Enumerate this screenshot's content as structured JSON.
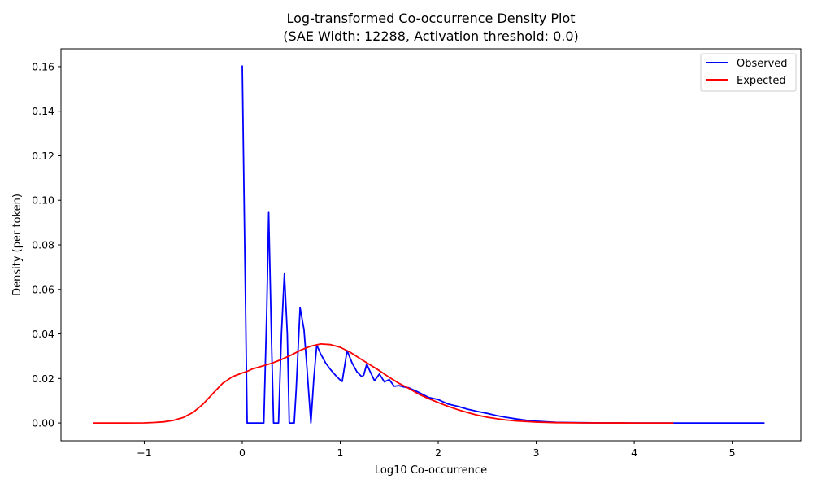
{
  "chart_data": {
    "type": "line",
    "title": "Log-transformed Co-occurrence Density Plot",
    "subtitle": "(SAE Width: 12288, Activation threshold: 0.0)",
    "xlabel": "Log10 Co-occurrence",
    "ylabel": "Density (per token)",
    "xlim": [
      -1.85,
      5.7
    ],
    "ylim": [
      -0.008,
      0.168
    ],
    "xticks": [
      -1,
      0,
      1,
      2,
      3,
      4,
      5
    ],
    "xtick_labels": [
      "−1",
      "0",
      "1",
      "2",
      "3",
      "4",
      "5"
    ],
    "yticks": [
      0.0,
      0.02,
      0.04,
      0.06,
      0.08,
      0.1,
      0.12,
      0.14,
      0.16
    ],
    "ytick_labels": [
      "0.00",
      "0.02",
      "0.04",
      "0.06",
      "0.08",
      "0.10",
      "0.12",
      "0.14",
      "0.16"
    ],
    "grid": false,
    "legend_position": "top-right",
    "series": [
      {
        "name": "Observed",
        "color": "#0000ff",
        "x": [
          0.0,
          0.05,
          0.1,
          0.15,
          0.22,
          0.25,
          0.27,
          0.3,
          0.32,
          0.37,
          0.4,
          0.43,
          0.46,
          0.48,
          0.53,
          0.55,
          0.59,
          0.63,
          0.66,
          0.7,
          0.73,
          0.76,
          0.8,
          0.85,
          0.9,
          0.95,
          1.0,
          1.02,
          1.07,
          1.12,
          1.17,
          1.22,
          1.24,
          1.27,
          1.3,
          1.35,
          1.4,
          1.45,
          1.5,
          1.55,
          1.6,
          1.65,
          1.7,
          1.8,
          1.9,
          2.0,
          2.1,
          2.2,
          2.3,
          2.4,
          2.5,
          2.6,
          2.7,
          2.8,
          2.9,
          3.0,
          3.1,
          3.2,
          3.3,
          3.5,
          3.7,
          4.0,
          4.5,
          5.0,
          5.33
        ],
        "y": [
          0.1605,
          0.0,
          0.0,
          0.0,
          0.0,
          0.05,
          0.0945,
          0.035,
          0.0,
          0.0,
          0.04,
          0.067,
          0.04,
          0.0,
          0.0,
          0.015,
          0.0518,
          0.042,
          0.025,
          0.0,
          0.02,
          0.035,
          0.031,
          0.027,
          0.024,
          0.0215,
          0.0193,
          0.0187,
          0.0325,
          0.027,
          0.023,
          0.0208,
          0.0215,
          0.0265,
          0.0235,
          0.019,
          0.022,
          0.0185,
          0.0195,
          0.0165,
          0.0168,
          0.0162,
          0.0158,
          0.0138,
          0.0115,
          0.0105,
          0.0085,
          0.0075,
          0.0062,
          0.0052,
          0.0043,
          0.0033,
          0.0025,
          0.0018,
          0.0012,
          0.0008,
          0.0005,
          0.0003,
          0.0002,
          0.0001,
          5e-05,
          0.0,
          0.0,
          0.0,
          0.0
        ]
      },
      {
        "name": "Expected",
        "color": "#ff0000",
        "x": [
          -1.52,
          -1.2,
          -1.0,
          -0.9,
          -0.8,
          -0.7,
          -0.6,
          -0.5,
          -0.4,
          -0.3,
          -0.2,
          -0.1,
          0.0,
          0.05,
          0.1,
          0.2,
          0.3,
          0.4,
          0.5,
          0.6,
          0.7,
          0.8,
          0.9,
          1.0,
          1.1,
          1.2,
          1.3,
          1.4,
          1.5,
          1.6,
          1.7,
          1.8,
          1.9,
          2.0,
          2.1,
          2.2,
          2.3,
          2.4,
          2.5,
          2.6,
          2.7,
          2.8,
          3.0,
          3.2,
          3.5,
          4.0,
          4.4
        ],
        "y": [
          0.0,
          0.0,
          5e-05,
          0.0002,
          0.0005,
          0.0012,
          0.0025,
          0.0048,
          0.0085,
          0.0132,
          0.0178,
          0.0208,
          0.0225,
          0.0232,
          0.0242,
          0.0255,
          0.0268,
          0.0285,
          0.0305,
          0.0328,
          0.0345,
          0.0355,
          0.0352,
          0.034,
          0.0318,
          0.029,
          0.0262,
          0.0235,
          0.0205,
          0.0178,
          0.0155,
          0.013,
          0.011,
          0.0092,
          0.0075,
          0.006,
          0.0047,
          0.0035,
          0.0026,
          0.0019,
          0.0013,
          0.0009,
          0.0004,
          0.00015,
          5e-05,
          0.0,
          0.0
        ]
      }
    ]
  }
}
